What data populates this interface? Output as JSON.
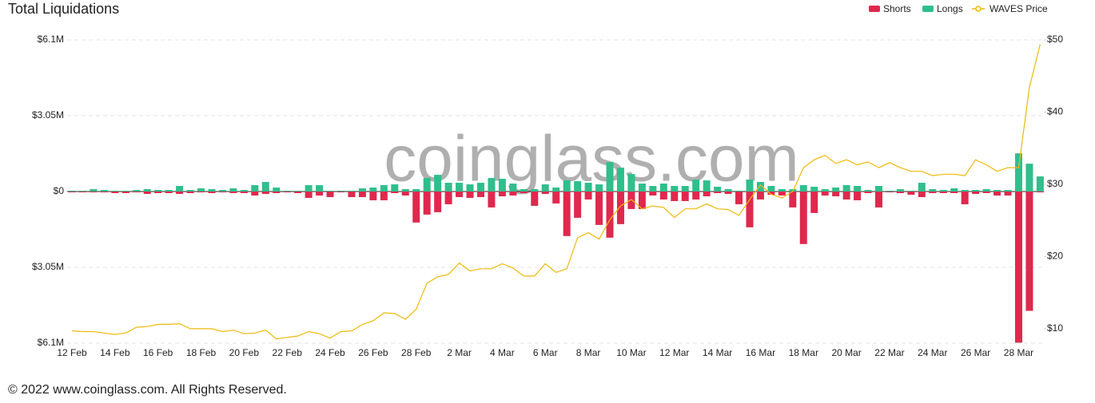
{
  "chart_data": {
    "type": "bar-line",
    "title": "Total Liquidations",
    "watermark": "coinglass.com",
    "footer": "© 2022 www.coinglass.com. All Rights Reserved.",
    "categories": [
      "12 Feb",
      null,
      null,
      null,
      "14 Feb",
      null,
      null,
      null,
      "16 Feb",
      null,
      null,
      null,
      "18 Feb",
      null,
      null,
      null,
      "20 Feb",
      null,
      null,
      null,
      "22 Feb",
      null,
      null,
      null,
      "24 Feb",
      null,
      null,
      null,
      "26 Feb",
      null,
      null,
      null,
      "28 Feb",
      null,
      null,
      null,
      "2 Mar",
      null,
      null,
      null,
      "4 Mar",
      null,
      null,
      null,
      "6 Mar",
      null,
      null,
      null,
      "8 Mar",
      null,
      null,
      null,
      "10 Mar",
      null,
      null,
      null,
      "12 Mar",
      null,
      null,
      null,
      "14 Mar",
      null,
      null,
      null,
      "16 Mar",
      null,
      null,
      null,
      "18 Mar",
      null,
      null,
      null,
      "20 Mar",
      null,
      null,
      null,
      "22 Mar",
      null,
      null,
      null,
      "24 Mar",
      null,
      null,
      null,
      "26 Mar",
      null,
      null,
      null,
      "28 Mar",
      null,
      null
    ],
    "series": [
      {
        "name": "Shorts",
        "color": "#e0284e",
        "values": [
          -32000,
          -32000,
          -32000,
          -32000,
          -64000,
          -64000,
          -32000,
          -96000,
          -64000,
          -64000,
          -96000,
          -64000,
          -32000,
          -64000,
          -32000,
          -64000,
          -64000,
          -160000,
          -96000,
          -64000,
          -32000,
          -64000,
          -256000,
          -160000,
          -224000,
          -32000,
          -224000,
          -224000,
          -352000,
          -352000,
          -64000,
          -160000,
          -1248000,
          -928000,
          -832000,
          -512000,
          -224000,
          -256000,
          -224000,
          -640000,
          -192000,
          -160000,
          -64000,
          -576000,
          -96000,
          -480000,
          -1792000,
          -1056000,
          -320000,
          -1344000,
          -1856000,
          -1312000,
          -704000,
          -704000,
          -160000,
          -320000,
          -384000,
          -384000,
          -320000,
          -192000,
          -64000,
          -96000,
          -512000,
          -1440000,
          -320000,
          -128000,
          -160000,
          -640000,
          -2112000,
          -864000,
          -160000,
          -192000,
          -320000,
          -352000,
          -64000,
          -640000,
          -32000,
          -64000,
          -128000,
          -224000,
          -64000,
          -64000,
          -64000,
          -512000,
          -96000,
          -64000,
          -160000,
          -160000,
          -6080000,
          -4800000,
          -32000
        ]
      },
      {
        "name": "Longs",
        "color": "#2fbf8c",
        "values": [
          32000,
          32000,
          96000,
          64000,
          32000,
          32000,
          64000,
          96000,
          64000,
          64000,
          224000,
          64000,
          128000,
          96000,
          64000,
          128000,
          64000,
          256000,
          384000,
          160000,
          32000,
          32000,
          256000,
          256000,
          32000,
          32000,
          32000,
          128000,
          160000,
          256000,
          288000,
          96000,
          96000,
          544000,
          672000,
          352000,
          352000,
          288000,
          352000,
          544000,
          512000,
          320000,
          96000,
          96000,
          288000,
          160000,
          448000,
          416000,
          352000,
          288000,
          1184000,
          960000,
          704000,
          320000,
          224000,
          320000,
          224000,
          224000,
          480000,
          448000,
          192000,
          96000,
          32000,
          480000,
          384000,
          224000,
          96000,
          96000,
          256000,
          192000,
          96000,
          160000,
          256000,
          224000,
          64000,
          224000,
          32000,
          96000,
          32000,
          352000,
          96000,
          64000,
          128000,
          64000,
          64000,
          96000,
          64000,
          64000,
          1536000,
          1120000,
          608000
        ]
      },
      {
        "name": "WAVES Price",
        "color": "#f0b90b",
        "axis": "y2",
        "values": [
          9.7,
          9.6,
          9.6,
          9.4,
          9.2,
          9.4,
          10.2,
          10.3,
          10.6,
          10.6,
          10.7,
          10.0,
          10.0,
          10.0,
          9.6,
          9.8,
          9.3,
          9.4,
          9.8,
          8.6,
          8.8,
          9.0,
          9.6,
          9.3,
          8.7,
          9.6,
          9.7,
          10.6,
          11.1,
          12.2,
          12.1,
          11.3,
          12.7,
          16.3,
          17.2,
          17.5,
          19.1,
          18.0,
          18.3,
          18.3,
          19.0,
          18.4,
          17.3,
          17.3,
          19.0,
          17.8,
          18.3,
          22.6,
          23.3,
          22.4,
          25.1,
          27.0,
          27.9,
          26.6,
          27.0,
          26.8,
          25.4,
          26.6,
          26.6,
          27.3,
          26.6,
          26.5,
          25.7,
          27.9,
          29.9,
          28.6,
          28.1,
          29.0,
          32.3,
          33.4,
          34.0,
          32.9,
          33.4,
          32.7,
          33.1,
          32.3,
          33.0,
          32.3,
          31.8,
          31.8,
          31.2,
          31.4,
          31.4,
          31.2,
          33.4,
          32.7,
          31.8,
          32.3,
          32.3,
          43.4,
          49.4
        ]
      }
    ],
    "ylim": [
      -6100000,
      6100000
    ],
    "yticks": [
      {
        "value": 6100000,
        "label": "$6.1M"
      },
      {
        "value": 3050000,
        "label": "$3.05M"
      },
      {
        "value": 0,
        "label": "$0"
      },
      {
        "value": -3050000,
        "label": "$3.05M"
      },
      {
        "value": -6100000,
        "label": "$6.1M"
      }
    ],
    "y2lim": [
      8,
      50
    ],
    "y2ticks": [
      {
        "value": 10,
        "label": "$10"
      },
      {
        "value": 20,
        "label": "$20"
      },
      {
        "value": 30,
        "label": "$30"
      },
      {
        "value": 40,
        "label": "$40"
      },
      {
        "value": 50,
        "label": "$50"
      }
    ],
    "grid": true,
    "legend": "top-right"
  }
}
